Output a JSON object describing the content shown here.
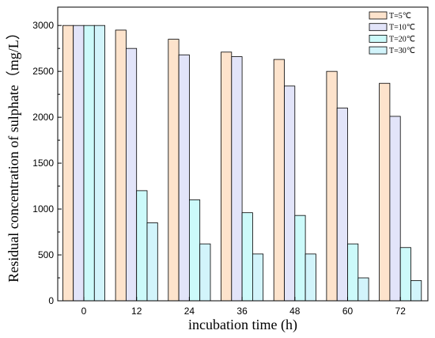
{
  "chart_data": {
    "type": "bar",
    "title": "",
    "xlabel": "incubation time (h)",
    "ylabel": "Residual concentration of sulphate（mg/L）",
    "categories": [
      "0",
      "12",
      "24",
      "36",
      "48",
      "60",
      "72"
    ],
    "ylim": [
      0,
      3200
    ],
    "yticks": [
      0,
      500,
      1000,
      1500,
      2000,
      2500,
      3000
    ],
    "grid": false,
    "legend_position": "top-right",
    "series": [
      {
        "name": "T=5℃",
        "color": "#fde3cc",
        "values": [
          3000,
          2950,
          2850,
          2710,
          2630,
          2500,
          2370
        ]
      },
      {
        "name": "T=10℃",
        "color": "#e2e4f9",
        "values": [
          3000,
          2750,
          2680,
          2660,
          2340,
          2100,
          2010
        ]
      },
      {
        "name": "T=20℃",
        "color": "#ccfafa",
        "values": [
          3000,
          1200,
          1100,
          960,
          930,
          620,
          580
        ]
      },
      {
        "name": "T=30℃",
        "color": "#d2f4fb",
        "values": [
          3000,
          850,
          620,
          510,
          510,
          250,
          220
        ]
      }
    ]
  }
}
